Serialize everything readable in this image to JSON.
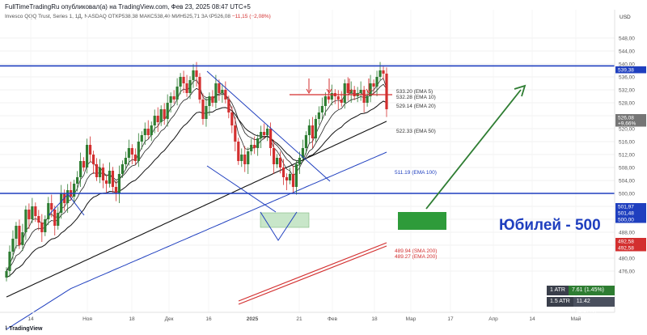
{
  "header": {
    "title": "FullTimeTradingRu опубликовал(а) на TradingView.com, Фев 23, 2025 08:47 UTC+5",
    "instrument": "Invesco QQQ Trust, Series 1, 1Д, NASDAQ",
    "ohlc_text": "ОТКР538,38  МАКС538,40  МИН525,71  ЗАКР526,08",
    "change_text": "−11,15 (−2,08%)"
  },
  "currency": "USD",
  "price_ticks": [
    "548,00",
    "544,00",
    "540,00",
    "536,00",
    "532,00",
    "528,00",
    "524,00",
    "520,00",
    "516,00",
    "512,00",
    "508,00",
    "504,00",
    "500,00",
    "496,00",
    "492,00",
    "488,00",
    "484,00",
    "480,00",
    "476,00"
  ],
  "price_badges": [
    {
      "text": "539,38",
      "color": "#1f3fbf"
    },
    {
      "text": "526,08",
      "color": "#757575"
    },
    {
      "text": "+9,66%",
      "color": "#757575"
    },
    {
      "text": "501,97",
      "color": "#1f3fbf"
    },
    {
      "text": "501,48",
      "color": "#1f3fbf"
    },
    {
      "text": "500,00",
      "color": "#1f3fbf"
    },
    {
      "text": "492,58",
      "color": "#d32f2f"
    },
    {
      "text": "492,58",
      "color": "#d32f2f"
    }
  ],
  "date_ticks": [
    "14",
    "Ноя",
    "18",
    "Дек",
    "16",
    "2025",
    "21",
    "Фев",
    "18",
    "Мар",
    "17",
    "Апр",
    "14",
    "Май"
  ],
  "ema_labels": [
    {
      "text": "533.20 (EMA 5)",
      "color": "#333333"
    },
    {
      "text": "532.28 (EMA 10)",
      "color": "#333333"
    },
    {
      "text": "529.14 (EMA 20)",
      "color": "#333333"
    },
    {
      "text": "522.33 (EMA 50)",
      "color": "#333333"
    },
    {
      "text": "511.19 (EMA 100)",
      "color": "#1f3fbf"
    },
    {
      "text": "489.94 (SMA 200)",
      "color": "#d32f2f"
    },
    {
      "text": "489.27 (EMA 200)",
      "color": "#d32f2f"
    }
  ],
  "annotation": "Юбилей - 500",
  "atr": [
    {
      "label": "1 ATR",
      "value": "7.61 (1.45%)",
      "color": "#2e7d32"
    },
    {
      "label": "1.5 ATR",
      "value": "11.42 (2.17%)",
      "color": "#3a3f4b"
    }
  ],
  "brand": "TradingView",
  "colors": {
    "up": "#2e7d32",
    "down": "#d32f2f",
    "level": "#1f3fbf",
    "ema100": "#1f3fbf",
    "sma200": "#d32f2f",
    "zone": "#2e9b3a"
  }
}
